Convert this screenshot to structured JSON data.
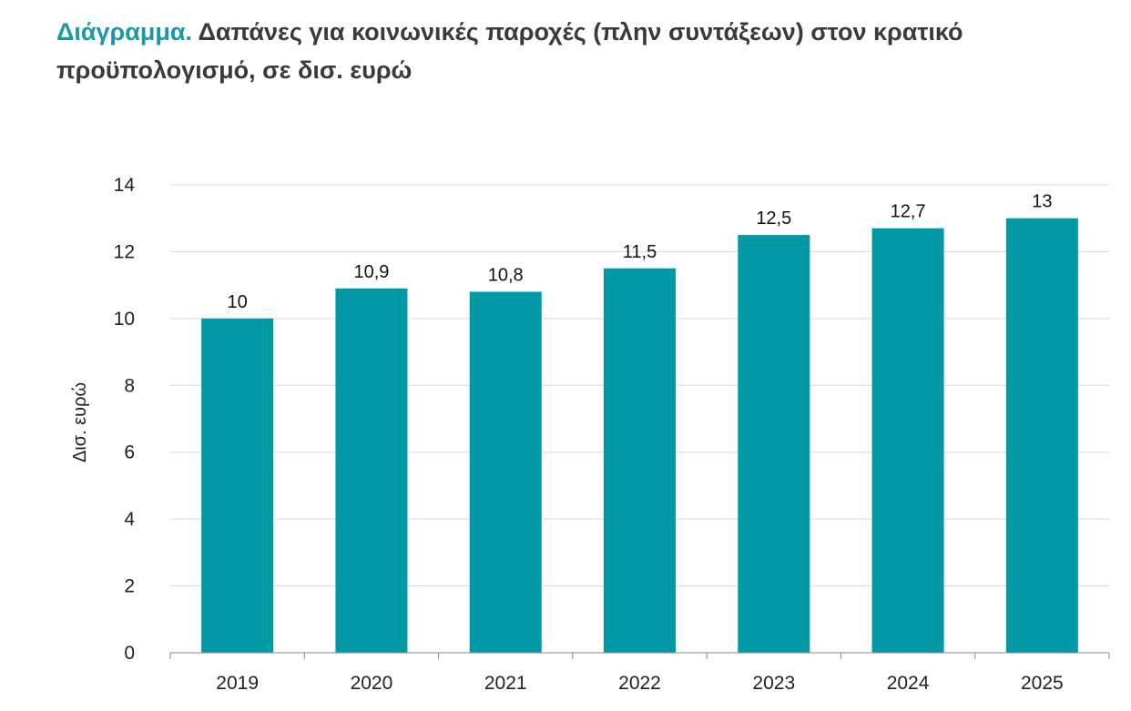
{
  "chart_data": {
    "type": "bar",
    "title_lead": "Διάγραμμα.",
    "title": "Δαπάνες για κοινωνικές παροχές (πλην συντάξεων) στον κρατικό προϋπολογισμό, σε δισ. ευρώ",
    "xlabel": "",
    "ylabel": "Δισ. ευρώ",
    "categories": [
      "2019",
      "2020",
      "2021",
      "2022",
      "2023",
      "2024",
      "2025"
    ],
    "values": [
      10,
      10.9,
      10.8,
      11.5,
      12.5,
      12.7,
      13
    ],
    "data_labels": [
      "10",
      "10,9",
      "10,8",
      "11,5",
      "12,5",
      "12,7",
      "13"
    ],
    "ylim": [
      0,
      14
    ],
    "yticks": [
      0,
      2,
      4,
      6,
      8,
      10,
      12,
      14
    ],
    "grid": true,
    "legend": "none",
    "colors": {
      "bar": "#0099a5",
      "title_accent": "#1a9aa6",
      "title_text": "#3a3a3a",
      "grid": "#d9d9d9"
    }
  }
}
